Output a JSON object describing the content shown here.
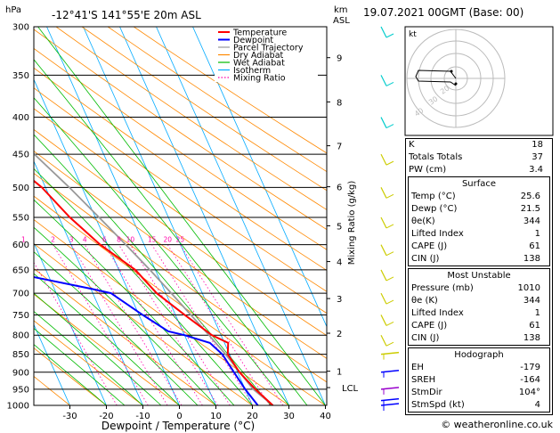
{
  "header": {
    "hpa_label": "hPa",
    "location": "-12°41'S 141°55'E 20m ASL",
    "km_label": "km",
    "asl_label": "ASL",
    "datetime": "19.07.2021 00GMT (Base: 00)"
  },
  "chart_data": {
    "type": "line",
    "title": "",
    "xlabel": "Dewpoint / Temperature (°C)",
    "ylabel": "hPa",
    "right_ylabel": "Mixing Ratio (g/kg)",
    "xlim": [
      -35,
      40
    ],
    "ylim": [
      1000,
      300
    ],
    "y_scale": "log",
    "x_ticks": [
      "-30",
      "-20",
      "-10",
      "0",
      "10",
      "20",
      "30",
      "40"
    ],
    "pressure_ticks": [
      "300",
      "350",
      "400",
      "450",
      "500",
      "550",
      "600",
      "650",
      "700",
      "750",
      "800",
      "850",
      "900",
      "950",
      "1000"
    ],
    "km_ticks": [
      {
        "p": 331,
        "label": "9"
      },
      {
        "p": 381,
        "label": "8"
      },
      {
        "p": 438,
        "label": "7"
      },
      {
        "p": 499,
        "label": "6"
      },
      {
        "p": 565,
        "label": "5"
      },
      {
        "p": 633,
        "label": "4"
      },
      {
        "p": 712,
        "label": "3"
      },
      {
        "p": 795,
        "label": "2"
      },
      {
        "p": 897,
        "label": "1"
      },
      {
        "p": 945,
        "label": "LCL"
      }
    ],
    "mixing_ratio_labels": [
      "1",
      "2",
      "3",
      "4",
      "6",
      "8",
      "10",
      "15",
      "20",
      "25"
    ],
    "legend": [
      "Temperature",
      "Dewpoint",
      "Parcel Trajectory",
      "Dry Adiabat",
      "Wet Adiabat",
      "Isotherm",
      "Mixing Ratio"
    ],
    "legend_position": "top-left",
    "colors": {
      "temperature": "#ff0000",
      "dewpoint": "#0000ff",
      "parcel": "#999999",
      "dry_adiabat": "#ff8800",
      "wet_adiabat": "#00bb00",
      "isotherm": "#00aaff",
      "mixing_ratio": "#ff00aa"
    },
    "series": [
      {
        "name": "Temperature",
        "p": [
          1000,
          950,
          900,
          850,
          820,
          800,
          750,
          700,
          650,
          600,
          550,
          500,
          450,
          400,
          350,
          300
        ],
        "values": [
          25.6,
          22.8,
          20.5,
          19.5,
          21,
          17.5,
          12.5,
          7.5,
          4.5,
          -2,
          -7,
          -11,
          -18,
          -25,
          -35,
          -42
        ]
      },
      {
        "name": "Dewpoint",
        "p": [
          1000,
          950,
          900,
          850,
          820,
          800,
          790,
          750,
          700,
          690,
          650,
          600,
          550,
          540,
          500,
          450,
          440,
          400,
          350,
          300
        ],
        "values": [
          21.5,
          20,
          19,
          18,
          16,
          10,
          6,
          1,
          -5,
          -10,
          -33,
          -33,
          -32,
          -38,
          -35,
          -43,
          -45,
          -36,
          -40,
          -38
        ]
      },
      {
        "name": "Parcel Trajectory",
        "p": [
          1000,
          950,
          900,
          850,
          800,
          750,
          700,
          650,
          600,
          550,
          500,
          450,
          400,
          350,
          300
        ],
        "values": [
          25.6,
          22.2,
          20.6,
          18.9,
          16.7,
          14.2,
          11.5,
          8.5,
          5.0,
          1.0,
          -3.5,
          -9.0,
          -15.5,
          -23.5,
          -33.0
        ]
      }
    ]
  },
  "wind_colors": [
    "#00cccc",
    "#00cccc",
    "#00cccc",
    "#cccc00",
    "#cccc00",
    "#cccc00",
    "#cccc00",
    "#cccc00",
    "#cccc00",
    "#cccc00",
    "#cccc00",
    "#cccc00",
    "#0000ff",
    "#9900cc",
    "#0000ff",
    "#0000ff"
  ],
  "hodograph": {
    "unit_label": "kt",
    "ring_labels": [
      "40",
      "30",
      "20"
    ]
  },
  "indices": {
    "rows": [
      {
        "label": "K",
        "value": "18"
      },
      {
        "label": "Totals Totals",
        "value": "37"
      },
      {
        "label": "PW (cm)",
        "value": "3.4"
      }
    ]
  },
  "surface": {
    "title": "Surface",
    "rows": [
      {
        "label": "Temp (°C)",
        "value": "25.6"
      },
      {
        "label": "Dewp (°C)",
        "value": "21.5"
      },
      {
        "label": "θe(K)",
        "value": "344"
      },
      {
        "label": "Lifted Index",
        "value": "1"
      },
      {
        "label": "CAPE (J)",
        "value": "61"
      },
      {
        "label": "CIN (J)",
        "value": "138"
      }
    ]
  },
  "most_unstable": {
    "title": "Most Unstable",
    "rows": [
      {
        "label": "Pressure (mb)",
        "value": "1010"
      },
      {
        "label": "θe (K)",
        "value": "344"
      },
      {
        "label": "Lifted Index",
        "value": "1"
      },
      {
        "label": "CAPE (J)",
        "value": "61"
      },
      {
        "label": "CIN (J)",
        "value": "138"
      }
    ]
  },
  "hodograph_table": {
    "title": "Hodograph",
    "rows": [
      {
        "label": "EH",
        "value": "-179"
      },
      {
        "label": "SREH",
        "value": "-164"
      },
      {
        "label": "StmDir",
        "value": "104°"
      },
      {
        "label": "StmSpd (kt)",
        "value": "4"
      }
    ]
  },
  "footer": "© weatheronline.co.uk"
}
